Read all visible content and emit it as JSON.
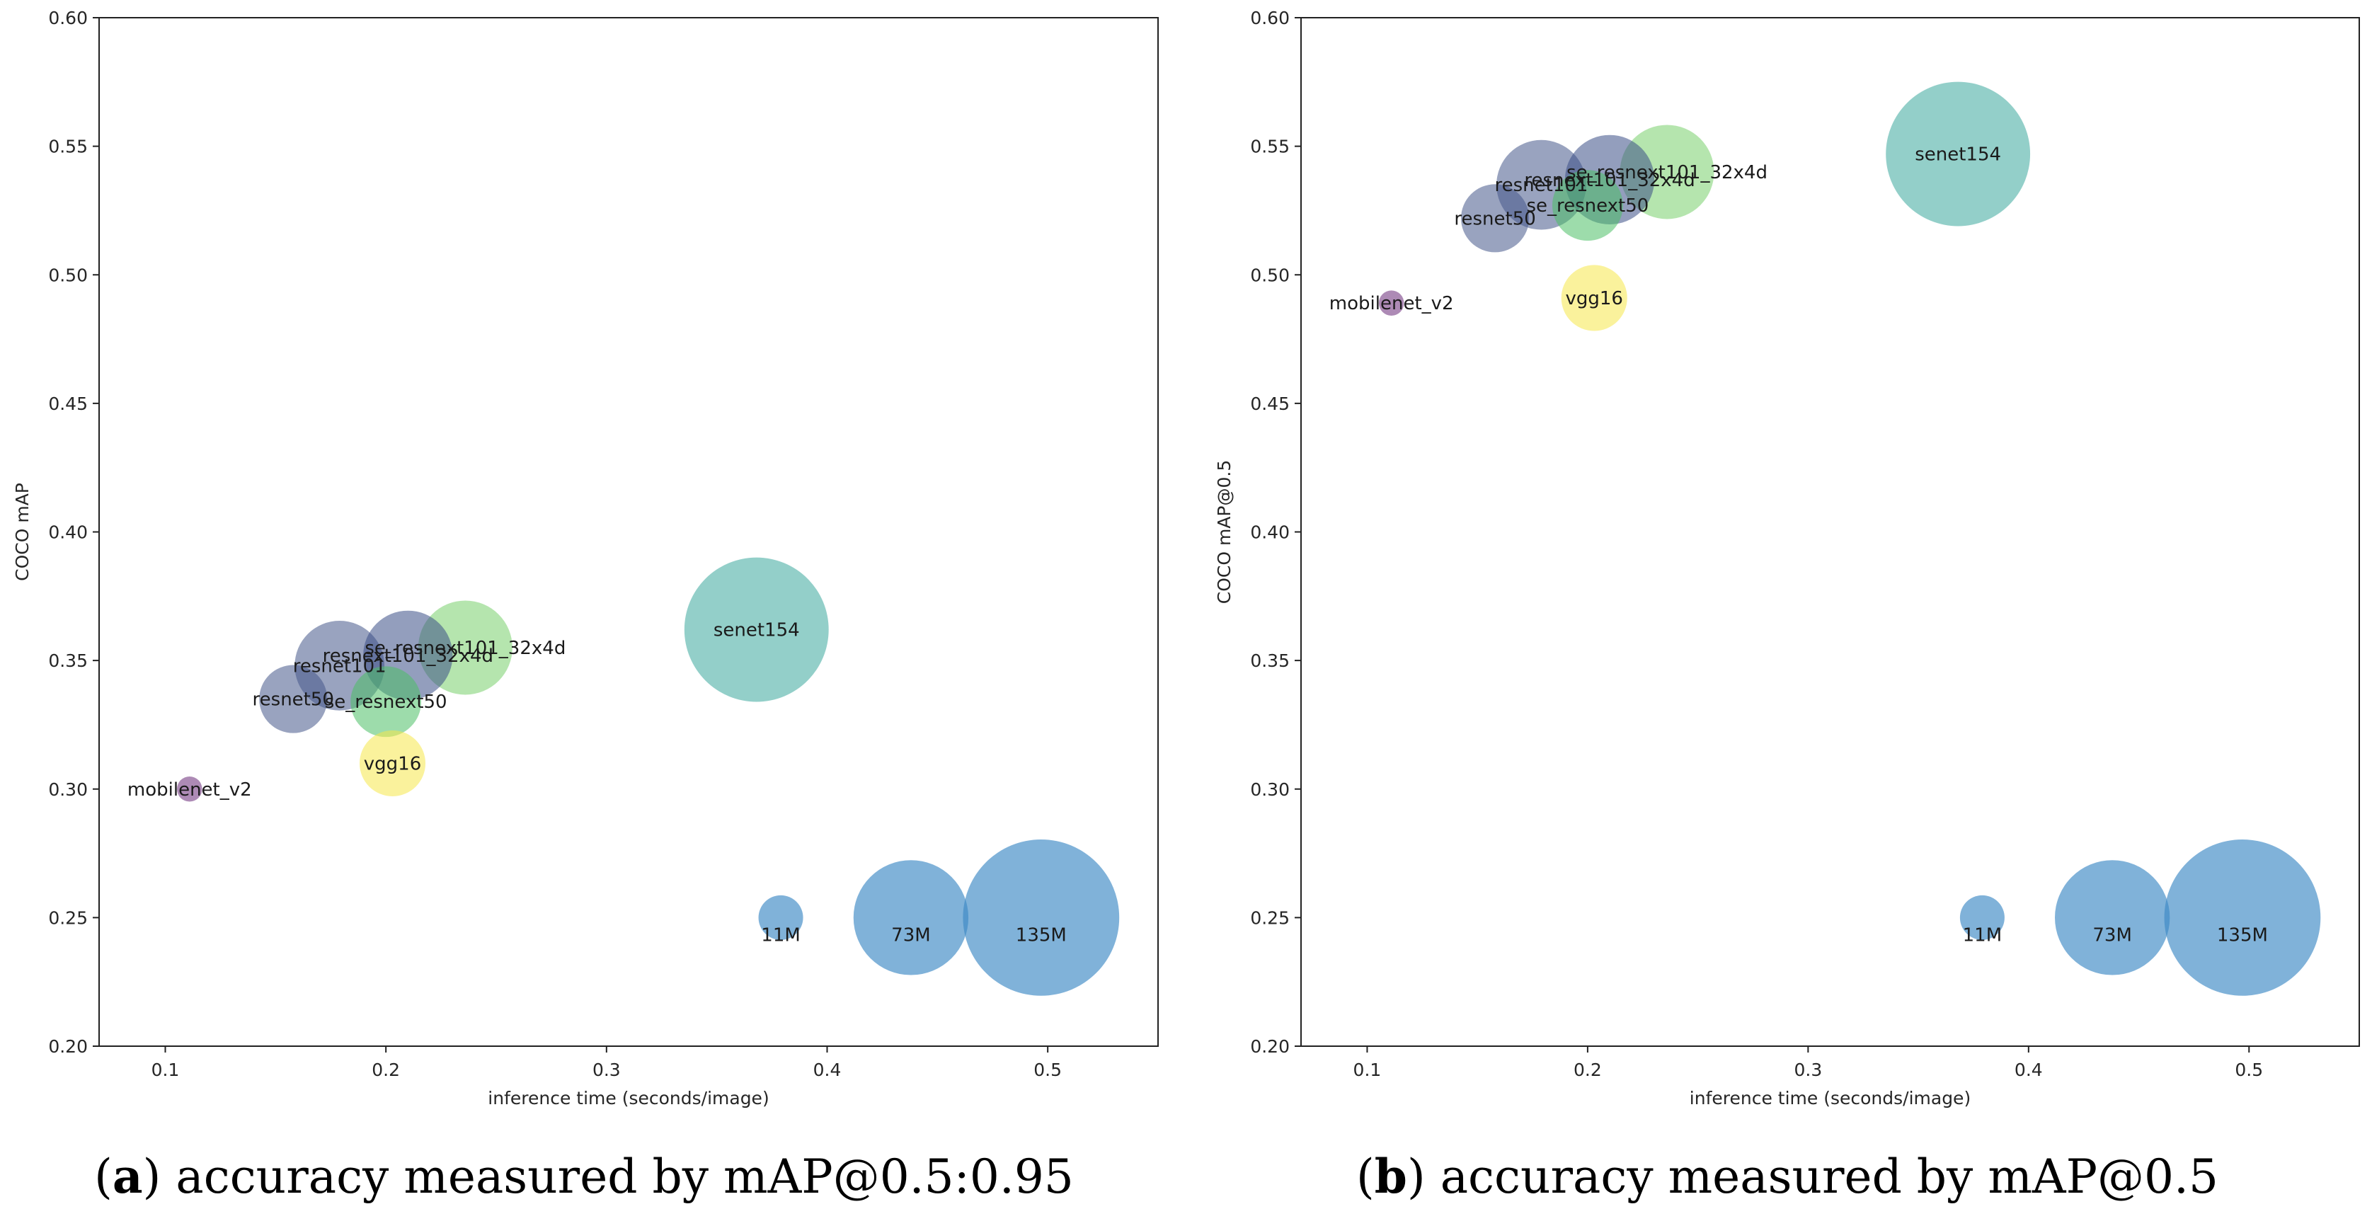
{
  "chart_data": [
    {
      "type": "scatter",
      "subtype": "bubble",
      "caption_letter": "a",
      "caption_text": "accuracy measured by mAP@0.5:0.95",
      "xlabel": "inference time (seconds/image)",
      "ylabel": "COCO mAP",
      "xlim": [
        0.07,
        0.55
      ],
      "ylim": [
        0.2,
        0.6
      ],
      "xticks": [
        0.1,
        0.2,
        0.3,
        0.4,
        0.5
      ],
      "yticks": [
        0.2,
        0.25,
        0.3,
        0.35,
        0.4,
        0.45,
        0.5,
        0.55,
        0.6
      ],
      "xtick_labels": [
        "0.1",
        "0.2",
        "0.3",
        "0.4",
        "0.5"
      ],
      "ytick_labels": [
        "0.20",
        "0.25",
        "0.30",
        "0.35",
        "0.40",
        "0.45",
        "0.50",
        "0.55",
        "0.60"
      ],
      "points": [
        {
          "label": "mobilenet_v2",
          "x": 0.111,
          "y": 0.3,
          "params_m": 3.5,
          "color": "#6a2a78",
          "label_anchor": "middle",
          "label_dy": 0
        },
        {
          "label": "resnet50",
          "x": 0.158,
          "y": 0.335,
          "params_m": 25.6,
          "color": "#46578a",
          "label_anchor": "middle",
          "label_dy": 0
        },
        {
          "label": "resnet101",
          "x": 0.179,
          "y": 0.348,
          "params_m": 44.5,
          "color": "#46578a",
          "label_anchor": "middle",
          "label_dy": 0
        },
        {
          "label": "resnext101_32x4d",
          "x": 0.21,
          "y": 0.352,
          "params_m": 44.2,
          "color": "#3a4f86",
          "label_anchor": "middle",
          "label_dy": 0
        },
        {
          "label": "se_resnext50",
          "x": 0.2,
          "y": 0.334,
          "params_m": 27.6,
          "color": "#4cbf66",
          "label_anchor": "middle",
          "label_dy": 0
        },
        {
          "label": "se_resnext101_32x4d",
          "x": 0.236,
          "y": 0.355,
          "params_m": 49.0,
          "color": "#78d06c",
          "label_anchor": "middle",
          "label_dy": 0
        },
        {
          "label": "vgg16",
          "x": 0.203,
          "y": 0.31,
          "params_m": 24.0,
          "color": "#f6e84a",
          "label_anchor": "middle",
          "label_dy": 0
        },
        {
          "label": "senet154",
          "x": 0.368,
          "y": 0.362,
          "params_m": 115.1,
          "color": "#3aa79c",
          "label_anchor": "middle",
          "label_dy": 0
        }
      ],
      "size_legend": [
        {
          "label": "11M",
          "x": 0.379,
          "y": 0.25,
          "params_m": 11,
          "color": "#3c88c4"
        },
        {
          "label": "73M",
          "x": 0.438,
          "y": 0.25,
          "params_m": 73,
          "color": "#3c88c4"
        },
        {
          "label": "135M",
          "x": 0.497,
          "y": 0.25,
          "params_m": 135,
          "color": "#3c88c4"
        }
      ]
    },
    {
      "type": "scatter",
      "subtype": "bubble",
      "caption_letter": "b",
      "caption_text": "accuracy measured by mAP@0.5",
      "xlabel": "inference time (seconds/image)",
      "ylabel": "COCO mAP@0.5",
      "xlim": [
        0.07,
        0.55
      ],
      "ylim": [
        0.2,
        0.6
      ],
      "xticks": [
        0.1,
        0.2,
        0.3,
        0.4,
        0.5
      ],
      "yticks": [
        0.2,
        0.25,
        0.3,
        0.35,
        0.4,
        0.45,
        0.5,
        0.55,
        0.6
      ],
      "xtick_labels": [
        "0.1",
        "0.2",
        "0.3",
        "0.4",
        "0.5"
      ],
      "ytick_labels": [
        "0.20",
        "0.25",
        "0.30",
        "0.35",
        "0.40",
        "0.45",
        "0.50",
        "0.55",
        "0.60"
      ],
      "points": [
        {
          "label": "mobilenet_v2",
          "x": 0.111,
          "y": 0.489,
          "params_m": 3.5,
          "color": "#6a2a78",
          "label_anchor": "middle",
          "label_dy": 0
        },
        {
          "label": "resnet50",
          "x": 0.158,
          "y": 0.522,
          "params_m": 25.6,
          "color": "#46578a",
          "label_anchor": "middle",
          "label_dy": 0
        },
        {
          "label": "resnet101",
          "x": 0.179,
          "y": 0.535,
          "params_m": 44.5,
          "color": "#46578a",
          "label_anchor": "middle",
          "label_dy": 0
        },
        {
          "label": "resnext101_32x4d",
          "x": 0.21,
          "y": 0.537,
          "params_m": 44.2,
          "color": "#3a4f86",
          "label_anchor": "middle",
          "label_dy": 0
        },
        {
          "label": "se_resnext50",
          "x": 0.2,
          "y": 0.527,
          "params_m": 27.6,
          "color": "#4cbf66",
          "label_anchor": "middle",
          "label_dy": 0
        },
        {
          "label": "se_resnext101_32x4d",
          "x": 0.236,
          "y": 0.54,
          "params_m": 49.0,
          "color": "#78d06c",
          "label_anchor": "middle",
          "label_dy": 0
        },
        {
          "label": "vgg16",
          "x": 0.203,
          "y": 0.491,
          "params_m": 24.0,
          "color": "#f6e84a",
          "label_anchor": "middle",
          "label_dy": 0
        },
        {
          "label": "senet154",
          "x": 0.368,
          "y": 0.547,
          "params_m": 115.1,
          "color": "#3aa79c",
          "label_anchor": "middle",
          "label_dy": 0
        }
      ],
      "size_legend": [
        {
          "label": "11M",
          "x": 0.379,
          "y": 0.25,
          "params_m": 11,
          "color": "#3c88c4"
        },
        {
          "label": "73M",
          "x": 0.438,
          "y": 0.25,
          "params_m": 73,
          "color": "#3c88c4"
        },
        {
          "label": "135M",
          "x": 0.497,
          "y": 0.25,
          "params_m": 135,
          "color": "#3c88c4"
        }
      ]
    }
  ]
}
